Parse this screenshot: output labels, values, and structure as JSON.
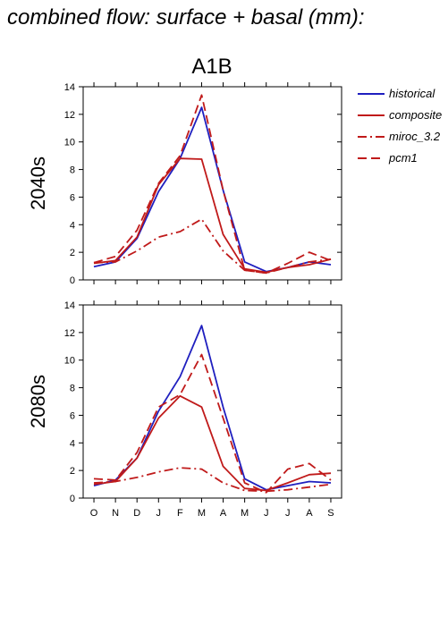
{
  "page_title": "combined flow: surface + basal (mm):",
  "scenario": "A1B",
  "colors": {
    "historical": "#1f1fbf",
    "composite": "#c01a1a",
    "miroc_3.2": "#c01a1a",
    "pcm1": "#c01a1a"
  },
  "legend": [
    {
      "name": "historical",
      "style": "solid",
      "color": "#1f1fbf"
    },
    {
      "name": "composite",
      "style": "solid",
      "color": "#c01a1a"
    },
    {
      "name": "miroc_3.2",
      "style": "dashdot",
      "color": "#c01a1a"
    },
    {
      "name": "pcm1",
      "style": "dash",
      "color": "#c01a1a"
    }
  ],
  "chart_data": [
    {
      "type": "line",
      "ylabel": "2040s",
      "categories": [
        "O",
        "N",
        "D",
        "J",
        "F",
        "M",
        "A",
        "M",
        "J",
        "J",
        "A",
        "S"
      ],
      "yticks": [
        0,
        2,
        4,
        6,
        8,
        10,
        12,
        14
      ],
      "ylim": [
        0,
        14
      ],
      "series": [
        {
          "name": "historical",
          "values": [
            0.95,
            1.3,
            3.0,
            6.4,
            8.8,
            12.5,
            6.5,
            1.3,
            0.6,
            0.9,
            1.3,
            1.1
          ]
        },
        {
          "name": "composite",
          "values": [
            1.2,
            1.4,
            3.1,
            6.9,
            8.8,
            8.75,
            3.3,
            0.8,
            0.55,
            0.9,
            1.1,
            1.5
          ]
        },
        {
          "name": "miroc_3.2",
          "values": [
            1.25,
            1.3,
            2.1,
            3.1,
            3.5,
            4.4,
            2.1,
            0.7,
            0.5,
            0.9,
            1.3,
            1.5
          ]
        },
        {
          "name": "pcm1",
          "values": [
            1.25,
            1.7,
            3.6,
            7.0,
            9.0,
            13.4,
            6.5,
            0.7,
            0.5,
            1.2,
            2.0,
            1.4
          ]
        }
      ]
    },
    {
      "type": "line",
      "ylabel": "2080s",
      "categories": [
        "O",
        "N",
        "D",
        "J",
        "F",
        "M",
        "A",
        "M",
        "J",
        "J",
        "A",
        "S"
      ],
      "yticks": [
        0,
        2,
        4,
        6,
        8,
        10,
        12,
        14
      ],
      "ylim": [
        0,
        14
      ],
      "series": [
        {
          "name": "historical",
          "values": [
            0.9,
            1.3,
            2.9,
            6.3,
            8.8,
            12.5,
            6.6,
            1.4,
            0.6,
            0.9,
            1.2,
            1.1
          ]
        },
        {
          "name": "composite",
          "values": [
            1.0,
            1.2,
            2.9,
            5.8,
            7.4,
            6.6,
            2.3,
            0.7,
            0.55,
            1.1,
            1.7,
            1.8
          ]
        },
        {
          "name": "miroc_3.2",
          "values": [
            1.1,
            1.2,
            1.5,
            1.9,
            2.2,
            2.1,
            1.1,
            0.55,
            0.5,
            0.6,
            0.8,
            1.0
          ]
        },
        {
          "name": "pcm1",
          "values": [
            1.4,
            1.3,
            3.3,
            6.6,
            7.5,
            10.4,
            5.8,
            1.1,
            0.4,
            2.1,
            2.5,
            1.3
          ]
        }
      ]
    }
  ]
}
